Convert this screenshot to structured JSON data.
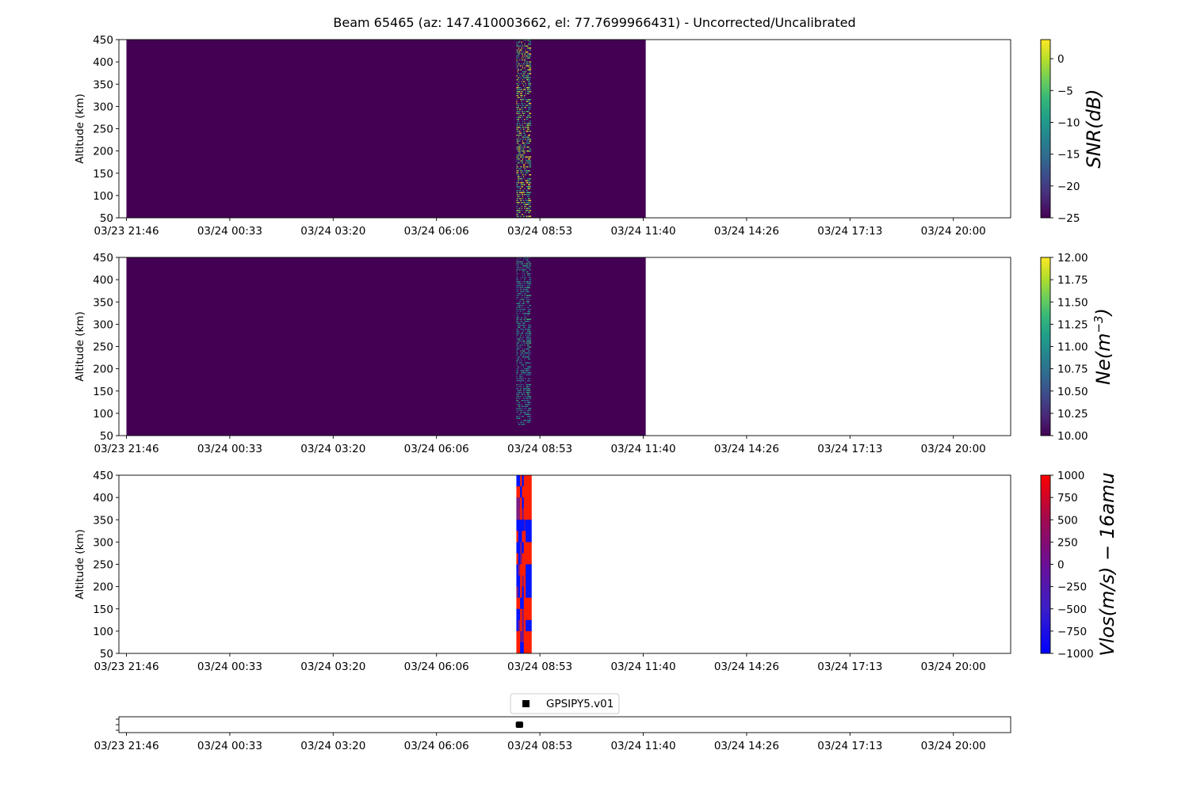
{
  "title": "Beam 65465 (az: 147.410003662, el: 77.7699966431) - Uncorrected/Uncalibrated",
  "x_ticks": [
    "03/23 21:46",
    "03/24 00:33",
    "03/24 03:20",
    "03/24 06:06",
    "03/24 08:53",
    "03/24 11:40",
    "03/24 14:26",
    "03/24 17:13",
    "03/24 20:00"
  ],
  "colors": {
    "background_fill": "#440154",
    "viridis": [
      "#440154",
      "#482878",
      "#3e4989",
      "#31688e",
      "#26828e",
      "#1f9e89",
      "#35b779",
      "#6ece58",
      "#b5de2b",
      "#fde725"
    ],
    "bwr_low": "#0000ff",
    "bwr_high": "#ff0000",
    "ticker_marker": "#000000"
  },
  "chart_data": [
    {
      "type": "heatmap",
      "name": "snr",
      "ylabel": "Altitude (km)",
      "ylim": [
        50,
        450
      ],
      "y_ticks": [
        "50",
        "100",
        "150",
        "200",
        "250",
        "300",
        "350",
        "400",
        "450"
      ],
      "xlim": [
        "03/23 21:46",
        "03/24 21:46"
      ],
      "data_coverage": [
        "03/23 21:46",
        "03/24 11:45"
      ],
      "active_interval": [
        "03/24 08:16",
        "03/24 08:38"
      ],
      "background_value": -25,
      "colorbar": {
        "label": "SNR(dB)",
        "range": [
          -25,
          3
        ],
        "ticks": [
          "0",
          "−5",
          "−10",
          "−15",
          "−20",
          "−25"
        ],
        "colormap": "viridis"
      }
    },
    {
      "type": "heatmap",
      "name": "ne",
      "ylabel": "Altitude (km)",
      "ylim": [
        50,
        450
      ],
      "y_ticks": [
        "50",
        "100",
        "150",
        "200",
        "250",
        "300",
        "350",
        "400",
        "450"
      ],
      "xlim": [
        "03/23 21:46",
        "03/24 21:46"
      ],
      "data_coverage": [
        "03/23 21:46",
        "03/24 11:45"
      ],
      "active_interval": [
        "03/24 08:16",
        "03/24 08:38"
      ],
      "background_value": 10,
      "colorbar": {
        "label_main": "Ne(m",
        "label_sup": "−3",
        "label_end": ")",
        "range": [
          10,
          12
        ],
        "ticks": [
          "12.00",
          "11.75",
          "11.50",
          "11.25",
          "11.00",
          "10.75",
          "10.50",
          "10.25",
          "10.00"
        ],
        "colormap": "viridis"
      }
    },
    {
      "type": "heatmap",
      "name": "vlos",
      "ylabel": "Altitude (km)",
      "ylim": [
        50,
        450
      ],
      "y_ticks": [
        "50",
        "100",
        "150",
        "200",
        "250",
        "300",
        "350",
        "400",
        "450"
      ],
      "xlim": [
        "03/23 21:46",
        "03/24 21:46"
      ],
      "active_interval": [
        "03/24 08:16",
        "03/24 08:40"
      ],
      "colorbar": {
        "label": "Vlos(m/s) − 16amu",
        "range": [
          -1000,
          1000
        ],
        "ticks": [
          "1000",
          "750",
          "500",
          "250",
          "0",
          "−250",
          "−500",
          "−750",
          "−1000"
        ],
        "colormap": "bwr"
      }
    },
    {
      "type": "scatter",
      "name": "ticker",
      "xlim": [
        "03/23 21:46",
        "03/24 21:46"
      ],
      "interval": [
        "03/24 08:15",
        "03/24 08:27"
      ],
      "legend": {
        "label": "GPSIPY5.v01",
        "placement": "top-center"
      }
    }
  ]
}
